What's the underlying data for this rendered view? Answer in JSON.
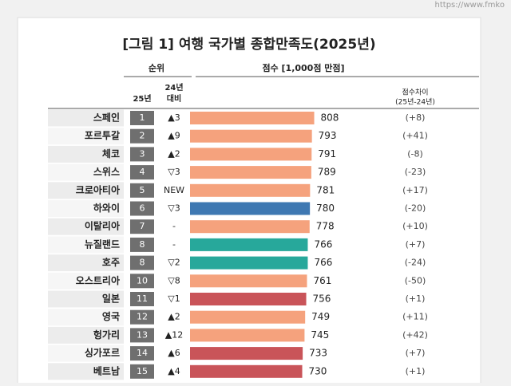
{
  "watermark": "https://www.fmko",
  "chart_data": {
    "type": "bar",
    "title": "[그림 1] 여행 국가별 종합만족도(2025년)",
    "rank_header": "순위",
    "rank_2025_header": "25년",
    "change_header": [
      "24년",
      "대비"
    ],
    "score_header": "점수 [1,000점 만점]",
    "diff_header": [
      "점수차이",
      "(25년-24년)"
    ],
    "categories": [
      "스페인",
      "포르투갈",
      "체코",
      "스위스",
      "크로아티아",
      "하와이",
      "이탈리아",
      "뉴질랜드",
      "호주",
      "오스트리아",
      "일본",
      "영국",
      "헝가리",
      "싱가포르",
      "베트남"
    ],
    "ranks": [
      1,
      2,
      3,
      4,
      5,
      6,
      7,
      8,
      8,
      10,
      11,
      12,
      13,
      14,
      15
    ],
    "changes": [
      "▲3",
      "▲9",
      "▲2",
      "▽3",
      "NEW",
      "▽3",
      "-",
      "-",
      "▽2",
      "▽8",
      "▽1",
      "▲2",
      "▲12",
      "▲6",
      "▲4"
    ],
    "values": [
      808,
      793,
      791,
      789,
      781,
      780,
      778,
      766,
      766,
      761,
      756,
      749,
      745,
      733,
      730
    ],
    "colors": [
      "#f5a27d",
      "#f5a27d",
      "#f5a27d",
      "#f5a27d",
      "#f5a27d",
      "#3e78b2",
      "#f5a27d",
      "#27a89b",
      "#27a89b",
      "#f5a27d",
      "#c95459",
      "#f5a27d",
      "#f5a27d",
      "#c95459",
      "#c95459"
    ],
    "differences": [
      "(+8)",
      "(+41)",
      "(-8)",
      "(-23)",
      "(+17)",
      "(-20)",
      "(+10)",
      "(+7)",
      "(-24)",
      "(-50)",
      "(+1)",
      "(+11)",
      "(+42)",
      "(+7)",
      "(+1)"
    ]
  }
}
